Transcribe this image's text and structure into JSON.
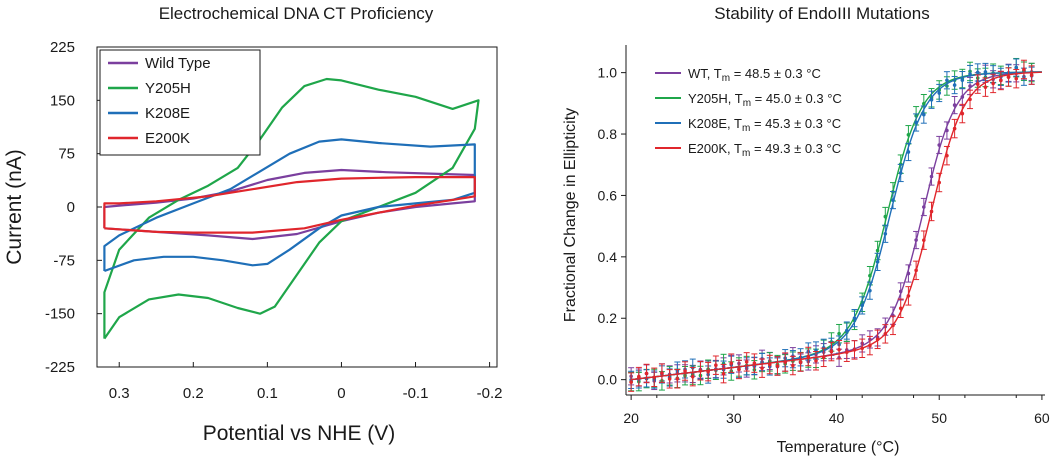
{
  "chart_data": [
    {
      "type": "line",
      "title": "Electrochemical DNA CT Proficiency",
      "xlabel": "Potential vs NHE (V)",
      "ylabel": "Current (nA)",
      "xlim": [
        0.33,
        -0.21
      ],
      "ylim": [
        -225,
        225
      ],
      "xticks": [
        0.3,
        0.2,
        0.1,
        0,
        -0.1,
        -0.2
      ],
      "xtick_labels": [
        "0.3",
        "0.2",
        "0.1",
        "0",
        "-0.1",
        "-0.2"
      ],
      "yticks": [
        225,
        150,
        75,
        0,
        -75,
        -150,
        -225
      ],
      "ytick_labels": [
        "225",
        "150",
        "75",
        "0",
        "-75",
        "-150",
        "-225"
      ],
      "legend_position": "top-left",
      "series": [
        {
          "name": "Wild Type",
          "color": "#7b3f9e",
          "points": [
            [
              0.32,
              -30
            ],
            [
              0.25,
              -35
            ],
            [
              0.18,
              -40
            ],
            [
              0.12,
              -45
            ],
            [
              0.06,
              -38
            ],
            [
              0.0,
              -20
            ],
            [
              -0.05,
              -8
            ],
            [
              -0.1,
              0
            ],
            [
              -0.15,
              5
            ],
            [
              -0.18,
              8
            ],
            [
              -0.18,
              45
            ],
            [
              -0.12,
              47
            ],
            [
              -0.06,
              49
            ],
            [
              0.0,
              52
            ],
            [
              0.05,
              48
            ],
            [
              0.1,
              38
            ],
            [
              0.15,
              22
            ],
            [
              0.2,
              12
            ],
            [
              0.25,
              6
            ],
            [
              0.3,
              2
            ],
            [
              0.32,
              0
            ],
            [
              0.32,
              -30
            ]
          ]
        },
        {
          "name": "Y205H",
          "color": "#1fa64a",
          "points": [
            [
              0.32,
              -185
            ],
            [
              0.3,
              -155
            ],
            [
              0.26,
              -130
            ],
            [
              0.22,
              -123
            ],
            [
              0.18,
              -128
            ],
            [
              0.14,
              -142
            ],
            [
              0.11,
              -150
            ],
            [
              0.09,
              -140
            ],
            [
              0.06,
              -95
            ],
            [
              0.03,
              -50
            ],
            [
              0.0,
              -20
            ],
            [
              -0.05,
              0
            ],
            [
              -0.1,
              20
            ],
            [
              -0.15,
              55
            ],
            [
              -0.18,
              110
            ],
            [
              -0.185,
              150
            ],
            [
              -0.15,
              138
            ],
            [
              -0.1,
              155
            ],
            [
              -0.05,
              165
            ],
            [
              0.0,
              178
            ],
            [
              0.02,
              180
            ],
            [
              0.05,
              170
            ],
            [
              0.08,
              140
            ],
            [
              0.11,
              95
            ],
            [
              0.14,
              55
            ],
            [
              0.18,
              30
            ],
            [
              0.22,
              10
            ],
            [
              0.26,
              -15
            ],
            [
              0.3,
              -60
            ],
            [
              0.32,
              -120
            ],
            [
              0.32,
              -185
            ]
          ]
        },
        {
          "name": "K208E",
          "color": "#1f6fb8",
          "points": [
            [
              0.32,
              -90
            ],
            [
              0.28,
              -75
            ],
            [
              0.24,
              -70
            ],
            [
              0.2,
              -70
            ],
            [
              0.16,
              -75
            ],
            [
              0.12,
              -82
            ],
            [
              0.1,
              -80
            ],
            [
              0.07,
              -60
            ],
            [
              0.03,
              -30
            ],
            [
              0.0,
              -12
            ],
            [
              -0.05,
              0
            ],
            [
              -0.1,
              5
            ],
            [
              -0.15,
              10
            ],
            [
              -0.18,
              20
            ],
            [
              -0.18,
              88
            ],
            [
              -0.12,
              85
            ],
            [
              -0.05,
              90
            ],
            [
              0.0,
              95
            ],
            [
              0.03,
              92
            ],
            [
              0.07,
              75
            ],
            [
              0.11,
              50
            ],
            [
              0.15,
              25
            ],
            [
              0.2,
              5
            ],
            [
              0.25,
              -15
            ],
            [
              0.3,
              -40
            ],
            [
              0.32,
              -55
            ],
            [
              0.32,
              -90
            ]
          ]
        },
        {
          "name": "E200K",
          "color": "#e0262c",
          "points": [
            [
              0.32,
              -30
            ],
            [
              0.25,
              -35
            ],
            [
              0.2,
              -36
            ],
            [
              0.12,
              -36
            ],
            [
              0.05,
              -30
            ],
            [
              0.0,
              -18
            ],
            [
              -0.05,
              -8
            ],
            [
              -0.1,
              2
            ],
            [
              -0.15,
              10
            ],
            [
              -0.18,
              15
            ],
            [
              -0.18,
              42
            ],
            [
              -0.1,
              42
            ],
            [
              -0.05,
              41
            ],
            [
              0.0,
              40
            ],
            [
              0.06,
              35
            ],
            [
              0.12,
              25
            ],
            [
              0.18,
              15
            ],
            [
              0.25,
              8
            ],
            [
              0.3,
              5
            ],
            [
              0.32,
              5
            ],
            [
              0.32,
              -30
            ]
          ]
        }
      ]
    },
    {
      "type": "line",
      "title": "Stability of EndoIII Mutations",
      "xlabel": "Temperature (°C)",
      "ylabel": "Fractional Change in Ellipticity",
      "xlim": [
        19.5,
        60.3
      ],
      "ylim": [
        -0.05,
        1.09
      ],
      "xticks": [
        20,
        30,
        40,
        50,
        60
      ],
      "xtick_labels": [
        "20",
        "30",
        "40",
        "50",
        "60"
      ],
      "yticks": [
        0.0,
        0.2,
        0.4,
        0.6,
        0.8,
        1.0
      ],
      "ytick_labels": [
        "0.0",
        "0.2",
        "0.4",
        "0.6",
        "0.8",
        "1.0"
      ],
      "legend_position": "top-left",
      "series": [
        {
          "name": "WT",
          "tm_label": "T",
          "tm_sub": "m",
          "tm_value": "= 48.5 ± 0.3 °C",
          "color": "#7b3f9e",
          "tm": 48.5,
          "width": 1.6,
          "err": 0.028
        },
        {
          "name": "Y205H",
          "tm_label": "T",
          "tm_sub": "m",
          "tm_value": "= 45.0 ± 0.3 °C",
          "color": "#1fa64a",
          "tm": 45.0,
          "width": 1.7,
          "err": 0.03
        },
        {
          "name": "K208E",
          "tm_label": "T",
          "tm_sub": "m",
          "tm_value": "= 45.3 ± 0.3 °C",
          "color": "#1f6fb8",
          "tm": 45.3,
          "width": 1.7,
          "err": 0.028
        },
        {
          "name": "E200K",
          "tm_label": "T",
          "tm_sub": "m",
          "tm_value": "= 49.3 ± 0.3 °C",
          "color": "#e0262c",
          "tm": 49.3,
          "width": 1.6,
          "err": 0.03
        }
      ],
      "data_x_range": [
        20,
        59
      ],
      "data_x_step": 0.75
    }
  ]
}
